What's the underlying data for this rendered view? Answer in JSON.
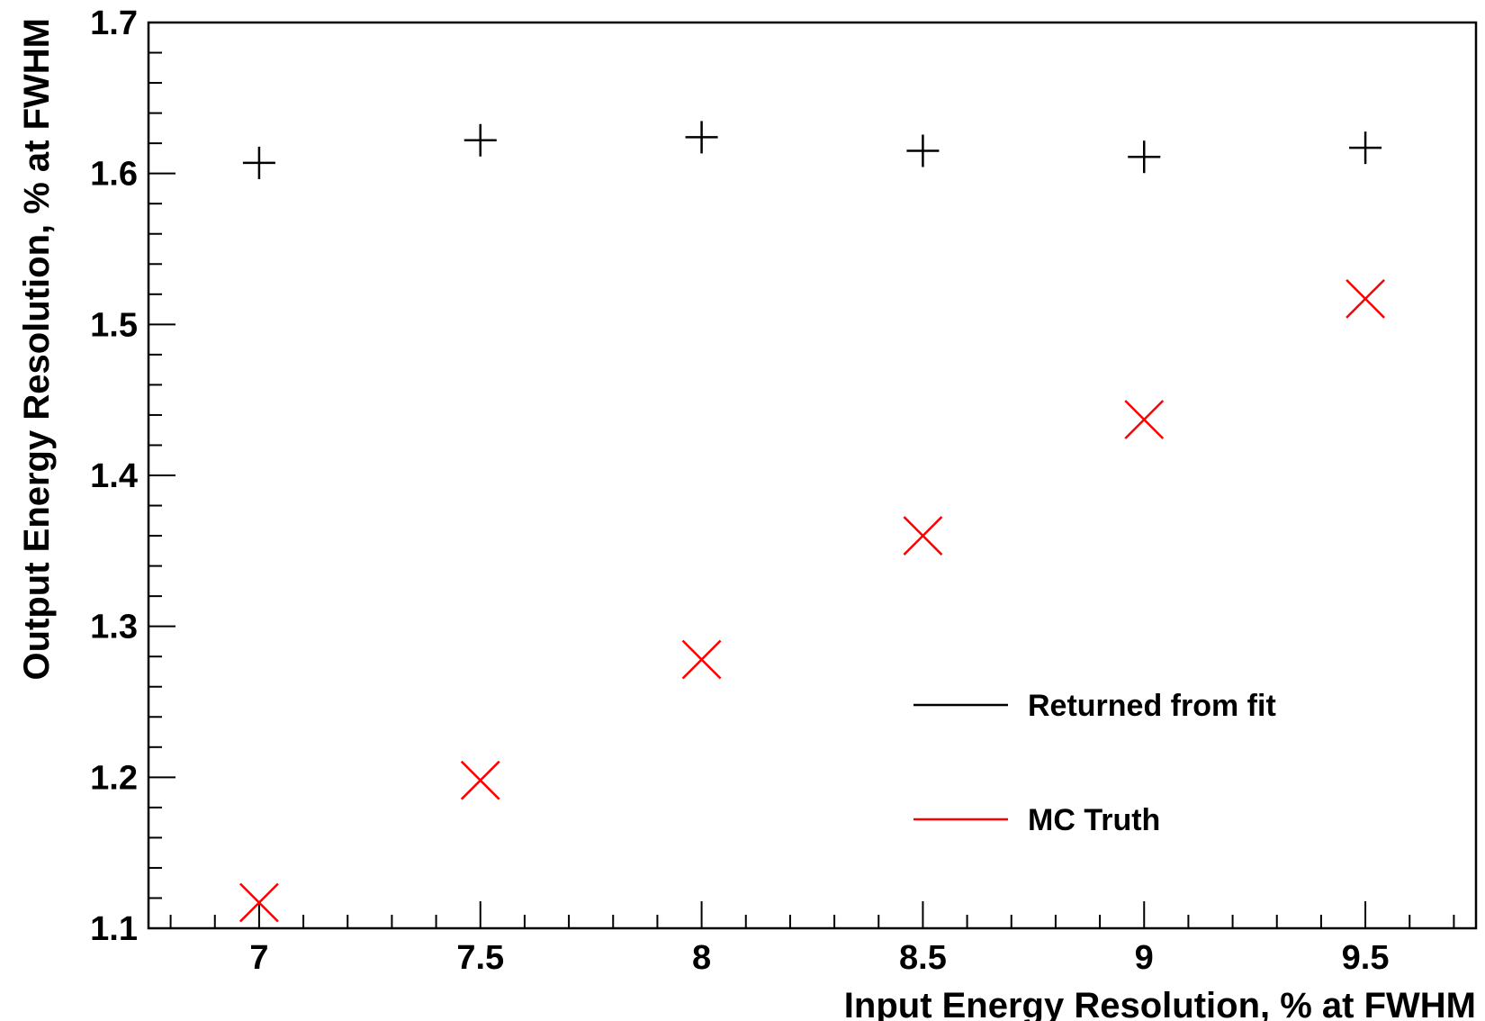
{
  "chart_data": {
    "type": "scatter",
    "title": "",
    "xlabel": "Input Energy Resolution, % at FWHM",
    "ylabel": "Output Energy Resolution, % at FWHM",
    "xlim": [
      6.75,
      9.75
    ],
    "ylim": [
      1.1,
      1.7
    ],
    "x_ticks": [
      7,
      7.5,
      8,
      8.5,
      9,
      9.5
    ],
    "x_tick_labels": [
      "7",
      "7.5",
      "8",
      "8.5",
      "9",
      "9.5"
    ],
    "y_ticks": [
      1.1,
      1.2,
      1.3,
      1.4,
      1.5,
      1.6,
      1.7
    ],
    "y_tick_labels": [
      "1.1",
      "1.2",
      "1.3",
      "1.4",
      "1.5",
      "1.6",
      "1.7"
    ],
    "grid": false,
    "legend_position": "bottom-right",
    "series": [
      {
        "name": "Returned from fit",
        "color": "#000000",
        "marker": "plus",
        "x": [
          7,
          7.5,
          8,
          8.5,
          9,
          9.5
        ],
        "y": [
          1.607,
          1.622,
          1.624,
          1.615,
          1.611,
          1.617
        ]
      },
      {
        "name": "MC Truth",
        "color": "#ff0000",
        "marker": "cross",
        "x": [
          7,
          7.5,
          8,
          8.5,
          9,
          9.5
        ],
        "y": [
          1.117,
          1.198,
          1.278,
          1.36,
          1.437,
          1.517
        ]
      }
    ]
  }
}
